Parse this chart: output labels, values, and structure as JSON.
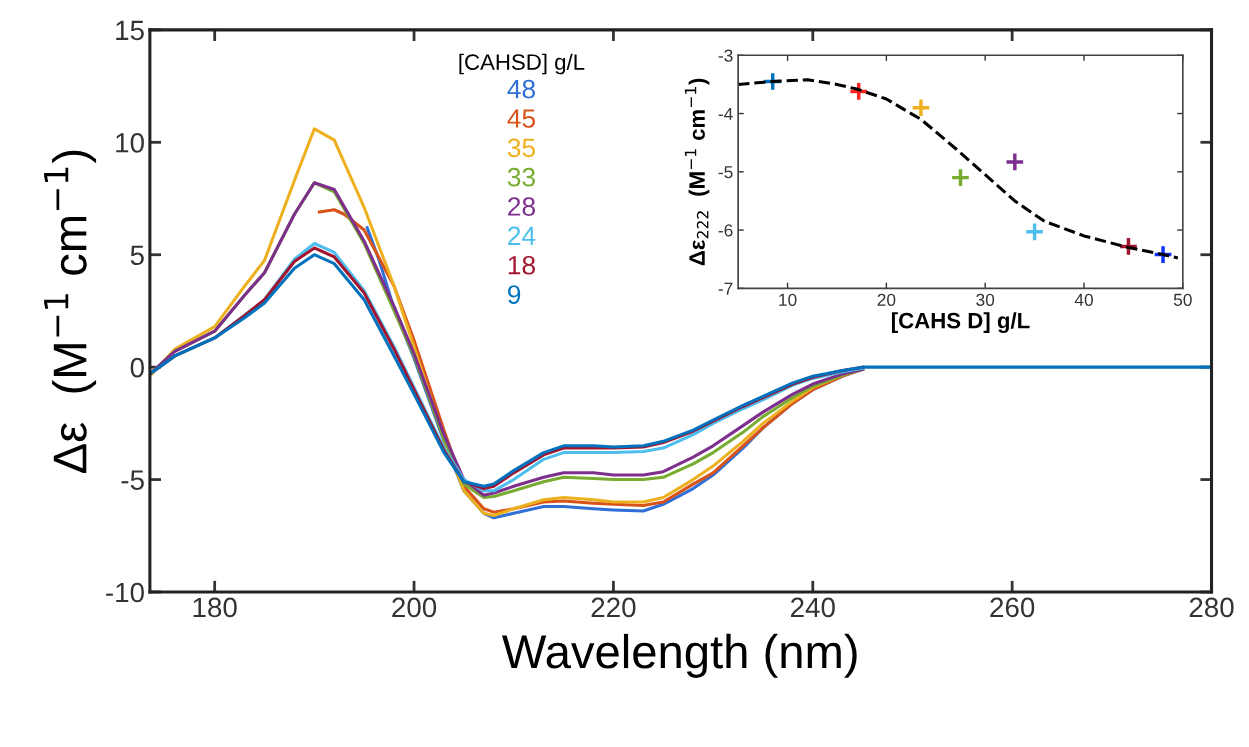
{
  "chart_data": [
    {
      "type": "line",
      "xlabel": "Wavelength (nm)",
      "ylabel": "Δε  (M$^{−1}$ cm$^{−1}$)",
      "legend_title": "[CAHSD] g/L",
      "legend": "top",
      "grid": false,
      "marker": "none",
      "line_style": "solid",
      "xlim": [
        173.5,
        280
      ],
      "xticks": [
        180,
        200,
        220,
        240,
        260,
        280
      ],
      "ylim": [
        -10,
        15
      ],
      "yticks": [
        -10,
        -5,
        0,
        5,
        10,
        15
      ],
      "x": [
        173.5,
        176,
        180,
        183,
        185,
        188,
        190,
        192,
        195,
        198,
        200,
        203,
        205,
        207,
        208,
        210,
        213,
        215,
        218,
        220,
        223,
        225,
        228,
        230,
        233,
        235,
        238,
        240,
        243,
        245,
        250,
        260,
        270,
        280
      ],
      "series": [
        {
          "name": "48",
          "color": "#2f6fd6",
          "x": [
            195.3,
            196.5,
            198,
            200,
            203,
            205,
            207,
            208,
            210,
            213,
            215,
            218,
            220,
            223,
            225,
            228,
            230,
            233,
            235,
            238,
            240,
            243,
            245
          ],
          "values": [
            6.2,
            4.75,
            2.6,
            0.4,
            -3.3,
            -5.5,
            -6.5,
            -6.7,
            -6.5,
            -6.2,
            -6.2,
            -6.3,
            -6.35,
            -6.4,
            -6.1,
            -5.4,
            -4.8,
            -3.6,
            -2.7,
            -1.6,
            -1.0,
            -0.4,
            -0.1
          ]
        },
        {
          "name": "45",
          "color": "#d95319",
          "x": [
            190.5,
            192,
            193,
            195,
            198,
            200,
            203,
            205,
            207,
            208,
            210,
            213,
            215,
            218,
            220,
            223,
            225,
            228,
            230,
            233,
            235,
            238,
            240,
            243,
            245
          ],
          "values": [
            6.9,
            7.0,
            6.8,
            6.1,
            3.6,
            1.2,
            -2.8,
            -5.3,
            -6.3,
            -6.45,
            -6.3,
            -6.0,
            -5.95,
            -6.05,
            -6.1,
            -6.15,
            -6.0,
            -5.2,
            -4.7,
            -3.5,
            -2.7,
            -1.6,
            -1.0,
            -0.4,
            -0.1
          ]
        },
        {
          "name": "35",
          "color": "#edb120",
          "values": [
            -0.4,
            0.8,
            1.8,
            3.6,
            4.75,
            8.3,
            10.6,
            10.1,
            7.1,
            3.6,
            0.9,
            -3.2,
            -5.5,
            -6.5,
            -6.6,
            -6.3,
            -5.9,
            -5.8,
            -5.9,
            -6.0,
            -6.0,
            -5.8,
            -5.0,
            -4.4,
            -3.3,
            -2.5,
            -1.5,
            -0.9,
            -0.35,
            -0.1,
            null,
            null,
            null,
            null
          ]
        },
        {
          "name": "33",
          "color": "#77ac30",
          "values": [
            -0.3,
            0.7,
            1.6,
            3.2,
            4.2,
            6.8,
            8.2,
            7.8,
            5.5,
            2.5,
            0.5,
            -3.2,
            -5.2,
            -5.8,
            -5.75,
            -5.5,
            -5.1,
            -4.9,
            -4.95,
            -5.0,
            -5.0,
            -4.9,
            -4.3,
            -3.8,
            -2.9,
            -2.2,
            -1.35,
            -0.85,
            -0.35,
            -0.1,
            null,
            null,
            null,
            null
          ]
        },
        {
          "name": "28",
          "color": "#7e2f8e",
          "values": [
            -0.3,
            0.7,
            1.6,
            3.2,
            4.2,
            6.8,
            8.2,
            7.9,
            5.6,
            2.7,
            0.6,
            -3.0,
            -5.0,
            -5.7,
            -5.6,
            -5.3,
            -4.9,
            -4.7,
            -4.7,
            -4.8,
            -4.8,
            -4.65,
            -4.0,
            -3.5,
            -2.6,
            -2.0,
            -1.2,
            -0.75,
            -0.3,
            -0.1,
            null,
            null,
            null,
            null
          ]
        },
        {
          "name": "24",
          "color": "#4dbeee",
          "values": [
            -0.3,
            0.5,
            1.3,
            2.3,
            3.0,
            4.8,
            5.5,
            5.1,
            3.4,
            0.9,
            -0.9,
            -3.6,
            -5.0,
            -5.5,
            -5.5,
            -5.0,
            -4.1,
            -3.8,
            -3.8,
            -3.8,
            -3.75,
            -3.6,
            -3.0,
            -2.5,
            -1.85,
            -1.45,
            -0.8,
            -0.5,
            -0.2,
            -0.05,
            null,
            null,
            null,
            null
          ]
        },
        {
          "name": "18",
          "color": "#a2142f",
          "values": [
            -0.3,
            0.5,
            1.3,
            2.3,
            3.0,
            4.7,
            5.3,
            4.9,
            3.3,
            0.8,
            -1.0,
            -3.7,
            -5.1,
            -5.4,
            -5.3,
            -4.7,
            -3.9,
            -3.6,
            -3.6,
            -3.6,
            -3.55,
            -3.35,
            -2.85,
            -2.4,
            -1.75,
            -1.35,
            -0.75,
            -0.45,
            -0.15,
            0,
            null,
            null,
            null,
            null
          ]
        },
        {
          "name": "9",
          "color": "#0072bd",
          "values": [
            -0.3,
            0.5,
            1.3,
            2.2,
            2.85,
            4.4,
            5.0,
            4.6,
            3.0,
            0.5,
            -1.2,
            -3.8,
            -5.1,
            -5.3,
            -5.2,
            -4.6,
            -3.8,
            -3.5,
            -3.5,
            -3.55,
            -3.5,
            -3.3,
            -2.8,
            -2.35,
            -1.7,
            -1.3,
            -0.7,
            -0.4,
            -0.15,
            0,
            0,
            0,
            0,
            0
          ]
        }
      ]
    },
    {
      "type": "scatter",
      "xlabel": "[CAHS D] g/L",
      "ylabel": "Δε$_{222}$  (M$^{−1}$ cm$^{−1}$)",
      "grid": false,
      "legend": false,
      "xlim": [
        5,
        50
      ],
      "xticks": [
        10,
        20,
        30,
        40,
        50
      ],
      "ylim": [
        -7,
        -3
      ],
      "yticks": [
        -7,
        -6,
        -5,
        -4,
        -3
      ],
      "series": [
        {
          "type": "scatter",
          "marker": "cross",
          "x": [
            8.5,
            17.2,
            23.5,
            27.5,
            33,
            35,
            44.5,
            48
          ],
          "values": [
            -3.45,
            -3.62,
            -3.9,
            -5.1,
            -4.83,
            -6.03,
            -6.28,
            -6.42
          ],
          "colors": [
            "#0072bd",
            "#ff2020",
            "#edb120",
            "#77ac30",
            "#7e2f8e",
            "#4dbeee",
            "#a2142f",
            "#1030ff"
          ]
        },
        {
          "type": "line",
          "line_style": "dashed",
          "marker": "none",
          "color": "#000000",
          "x": [
            5,
            8.5,
            12,
            15,
            17,
            20,
            23.5,
            27,
            30,
            33,
            36,
            40,
            44.5,
            48,
            49.5
          ],
          "values": [
            -3.5,
            -3.45,
            -3.42,
            -3.5,
            -3.58,
            -3.75,
            -4.1,
            -4.6,
            -5.05,
            -5.5,
            -5.85,
            -6.1,
            -6.3,
            -6.42,
            -6.48
          ]
        }
      ]
    }
  ]
}
